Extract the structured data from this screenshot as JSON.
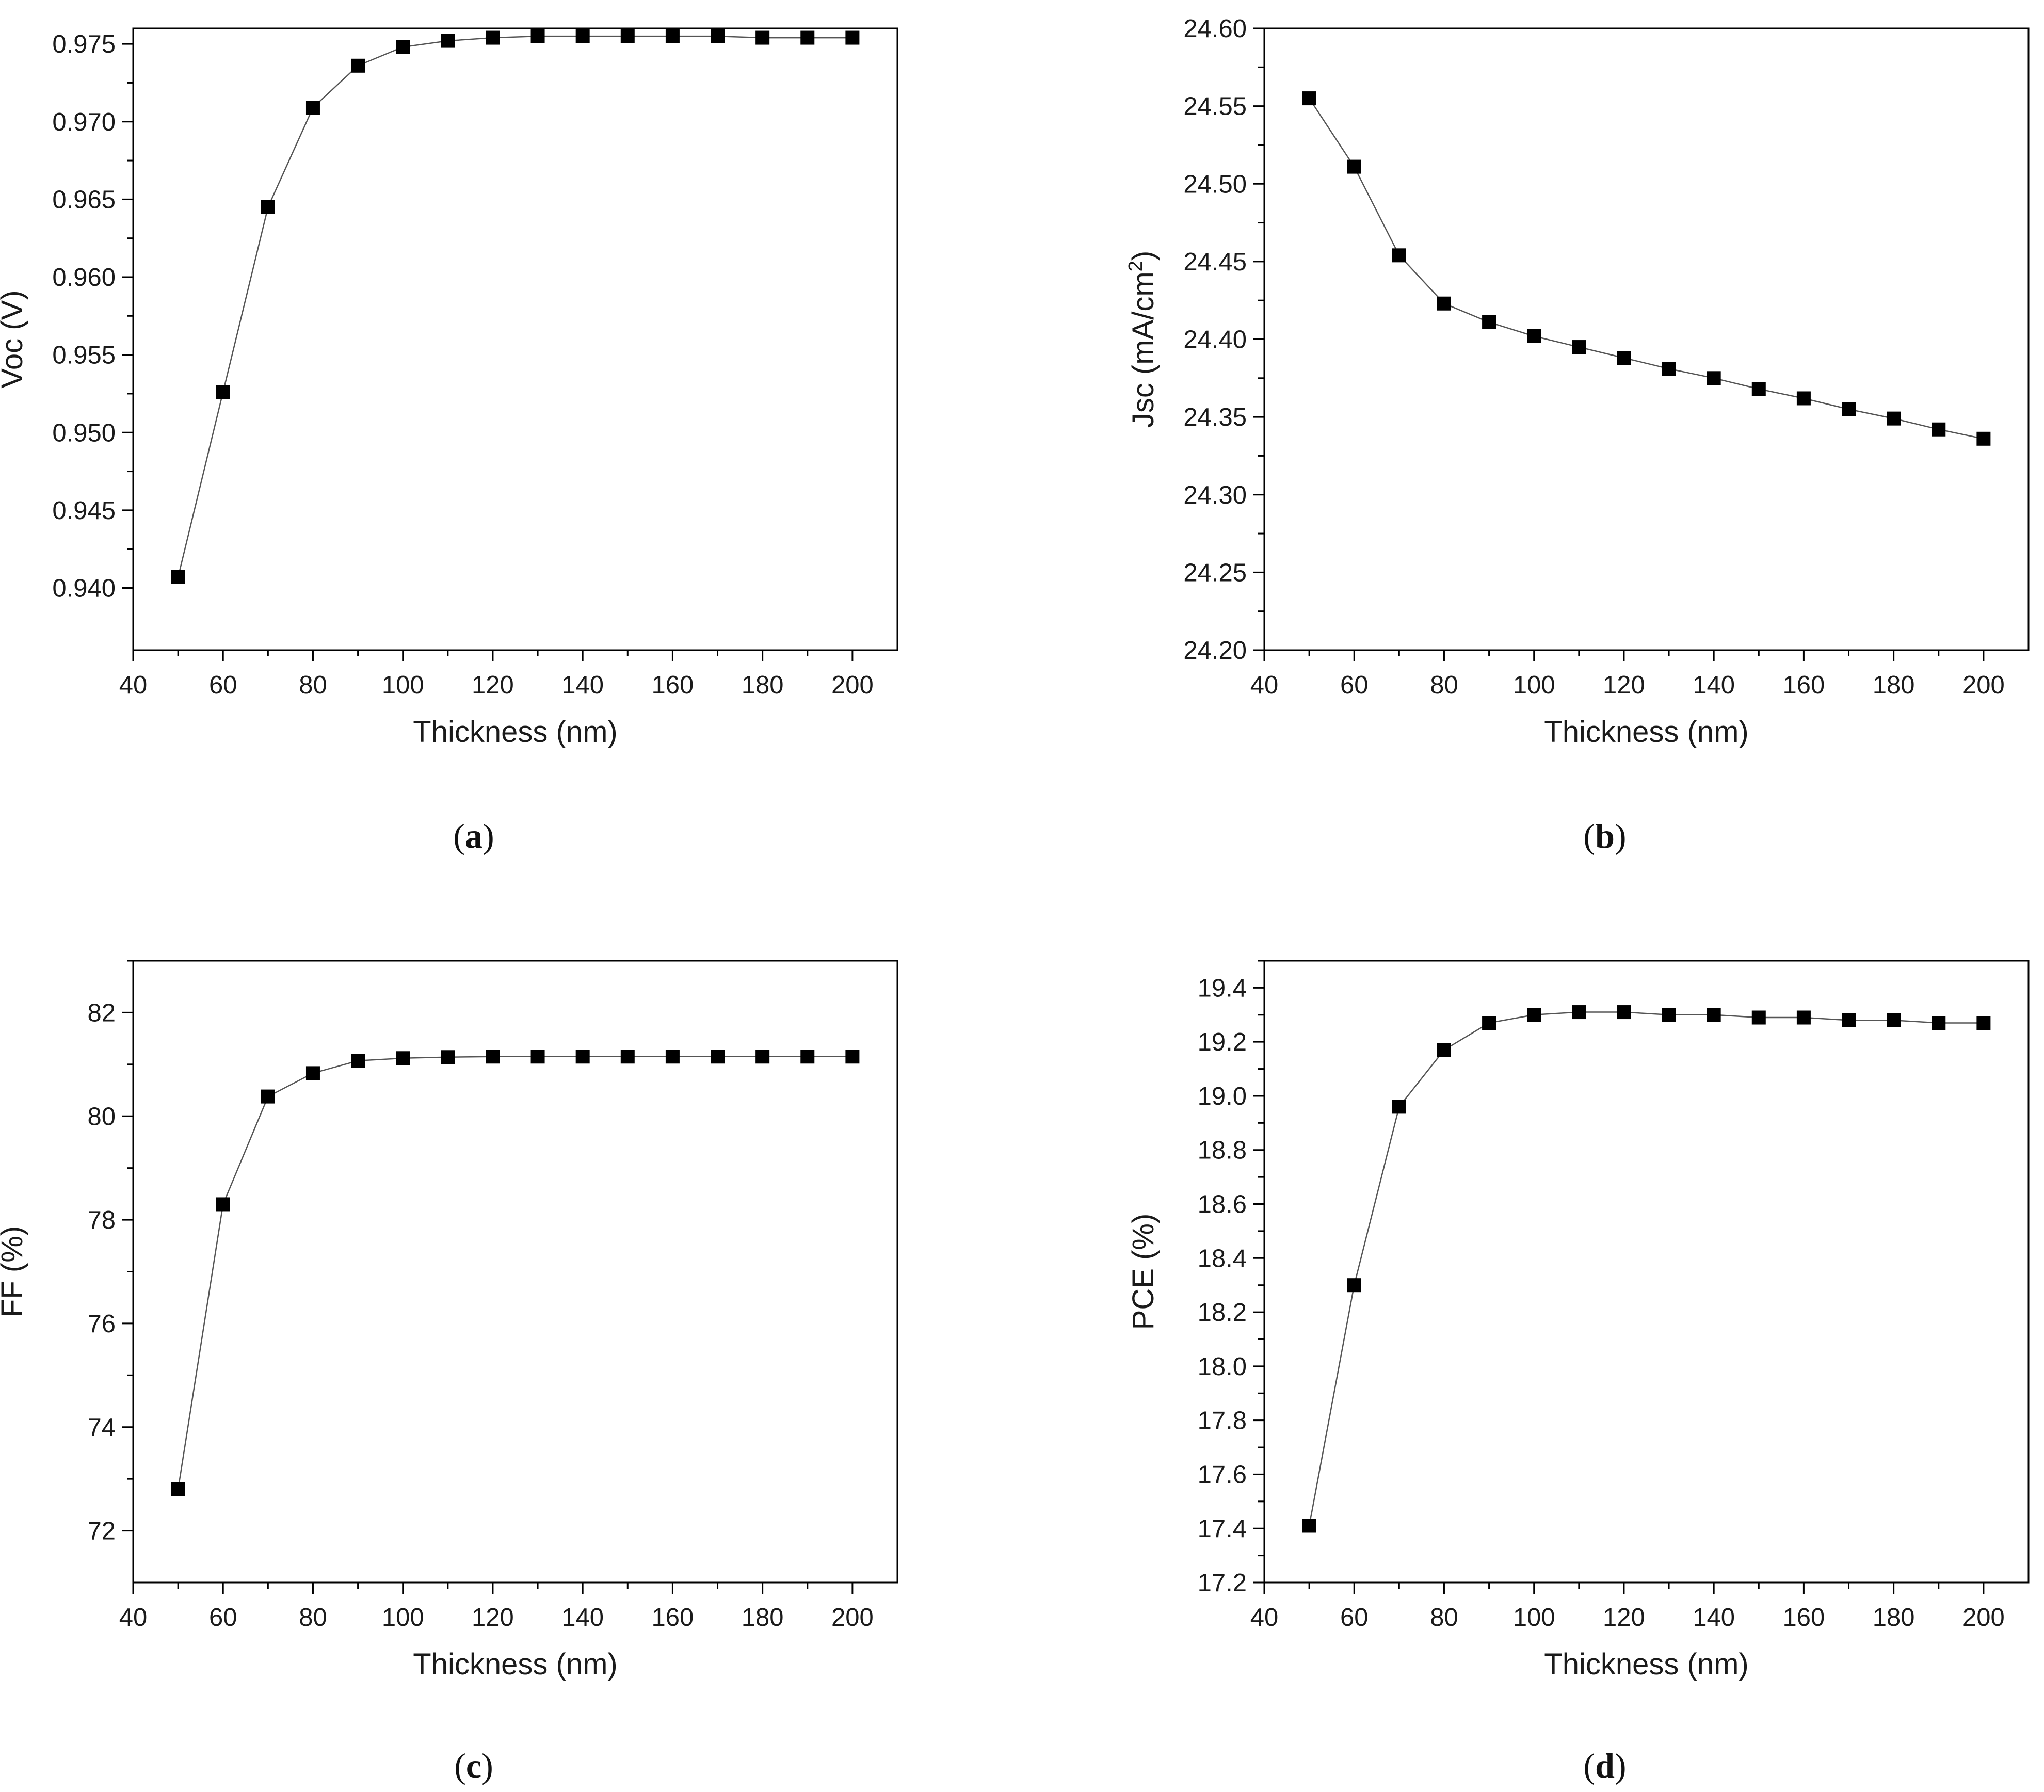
{
  "figure": {
    "colors": {
      "line": "#555555",
      "marker": "#000000",
      "axis": "#000000",
      "text": "#1a1a1a"
    },
    "marker_shape": "filled-square"
  },
  "chart_data": [
    {
      "type": "line",
      "panel": "a",
      "caption": {
        "open": "(",
        "letter": "a",
        "close": ")"
      },
      "xlabel": "Thickness (nm)",
      "ylabel": "Voc (V)",
      "ylabel_sup": "",
      "ylabel_tail": "",
      "xlim": [
        40,
        210
      ],
      "ylim": [
        0.936,
        0.976
      ],
      "xticks": [
        40,
        60,
        80,
        100,
        120,
        140,
        160,
        180,
        200
      ],
      "yticks": [
        0.94,
        0.945,
        0.95,
        0.955,
        0.96,
        0.965,
        0.97,
        0.975
      ],
      "ydecimals": 3,
      "x": [
        50,
        60,
        70,
        80,
        90,
        100,
        110,
        120,
        130,
        140,
        150,
        160,
        170,
        180,
        190,
        200
      ],
      "y": [
        0.9407,
        0.9526,
        0.9645,
        0.9709,
        0.9736,
        0.9748,
        0.9752,
        0.9754,
        0.9755,
        0.9755,
        0.9755,
        0.9755,
        0.9755,
        0.9754,
        0.9754,
        0.9754
      ]
    },
    {
      "type": "line",
      "panel": "b",
      "caption": {
        "open": "(",
        "letter": "b",
        "close": ")"
      },
      "xlabel": "Thickness (nm)",
      "ylabel": "Jsc (mA/cm",
      "ylabel_sup": "2",
      "ylabel_tail": ")",
      "xlim": [
        40,
        210
      ],
      "ylim": [
        24.2,
        24.6
      ],
      "xticks": [
        40,
        60,
        80,
        100,
        120,
        140,
        160,
        180,
        200
      ],
      "yticks": [
        24.2,
        24.25,
        24.3,
        24.35,
        24.4,
        24.45,
        24.5,
        24.55,
        24.6
      ],
      "ydecimals": 2,
      "x": [
        50,
        60,
        70,
        80,
        90,
        100,
        110,
        120,
        130,
        140,
        150,
        160,
        170,
        180,
        190,
        200
      ],
      "y": [
        24.555,
        24.511,
        24.454,
        24.423,
        24.411,
        24.402,
        24.395,
        24.388,
        24.381,
        24.375,
        24.368,
        24.362,
        24.355,
        24.349,
        24.342,
        24.336
      ]
    },
    {
      "type": "line",
      "panel": "c",
      "caption": {
        "open": "(",
        "letter": "c",
        "close": ")"
      },
      "xlabel": "Thickness (nm)",
      "ylabel": "FF (%)",
      "ylabel_sup": "",
      "ylabel_tail": "",
      "xlim": [
        40,
        210
      ],
      "ylim": [
        71,
        83
      ],
      "xticks": [
        40,
        60,
        80,
        100,
        120,
        140,
        160,
        180,
        200
      ],
      "yticks": [
        72,
        74,
        76,
        78,
        80,
        82
      ],
      "ydecimals": 0,
      "x": [
        50,
        60,
        70,
        80,
        90,
        100,
        110,
        120,
        130,
        140,
        150,
        160,
        170,
        180,
        190,
        200
      ],
      "y": [
        72.8,
        78.3,
        80.38,
        80.83,
        81.07,
        81.12,
        81.14,
        81.15,
        81.15,
        81.15,
        81.15,
        81.15,
        81.15,
        81.15,
        81.15,
        81.15
      ]
    },
    {
      "type": "line",
      "panel": "d",
      "caption": {
        "open": "(",
        "letter": "d",
        "close": ")"
      },
      "xlabel": "Thickness (nm)",
      "ylabel": "PCE (%)",
      "ylabel_sup": "",
      "ylabel_tail": "",
      "xlim": [
        40,
        210
      ],
      "ylim": [
        17.2,
        19.5
      ],
      "xticks": [
        40,
        60,
        80,
        100,
        120,
        140,
        160,
        180,
        200
      ],
      "yticks": [
        17.2,
        17.4,
        17.6,
        17.8,
        18.0,
        18.2,
        18.4,
        18.6,
        18.8,
        19.0,
        19.2,
        19.4
      ],
      "ydecimals": 1,
      "x": [
        50,
        60,
        70,
        80,
        90,
        100,
        110,
        120,
        130,
        140,
        150,
        160,
        170,
        180,
        190,
        200
      ],
      "y": [
        17.41,
        18.3,
        18.96,
        19.17,
        19.27,
        19.3,
        19.31,
        19.31,
        19.3,
        19.3,
        19.29,
        19.29,
        19.28,
        19.28,
        19.27,
        19.27
      ]
    }
  ]
}
